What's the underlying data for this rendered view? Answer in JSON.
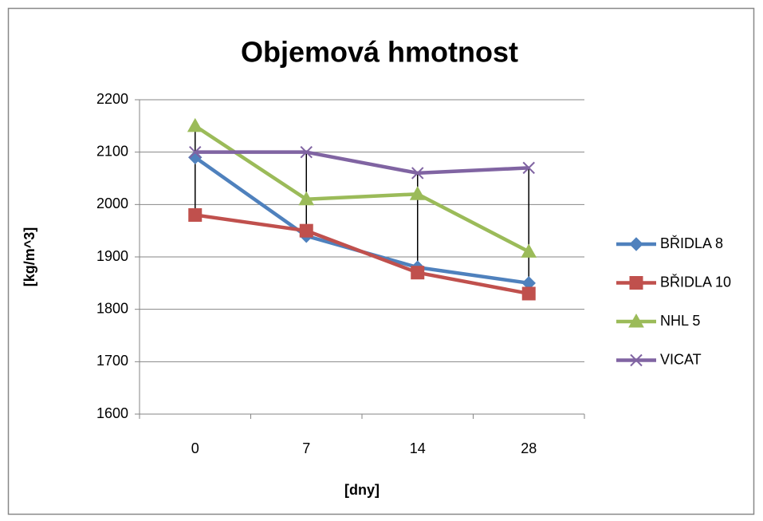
{
  "chart_data": {
    "type": "line",
    "title": "Objemová hmotnost",
    "xlabel": "[dny]",
    "ylabel": "[kg/m^3]",
    "categories": [
      "0",
      "7",
      "14",
      "28"
    ],
    "series": [
      {
        "name": "BŘIDLA 8",
        "color": "#4f81bd",
        "marker": "diamond",
        "values": [
          2090,
          1940,
          1880,
          1850
        ]
      },
      {
        "name": "BŘIDLA 10",
        "color": "#c0504d",
        "marker": "square",
        "values": [
          1980,
          1950,
          1870,
          1830
        ]
      },
      {
        "name": "NHL 5",
        "color": "#9bbb59",
        "marker": "triangle",
        "values": [
          2150,
          2010,
          2020,
          1910
        ]
      },
      {
        "name": "VICAT",
        "color": "#8064a2",
        "marker": "x",
        "values": [
          2100,
          2100,
          2060,
          2070
        ]
      }
    ],
    "ylim": [
      1600,
      2200
    ],
    "yticks": [
      1600,
      1700,
      1800,
      1900,
      2000,
      2100,
      2200
    ],
    "grid": true,
    "high_low_lines": true,
    "legend": "right"
  }
}
